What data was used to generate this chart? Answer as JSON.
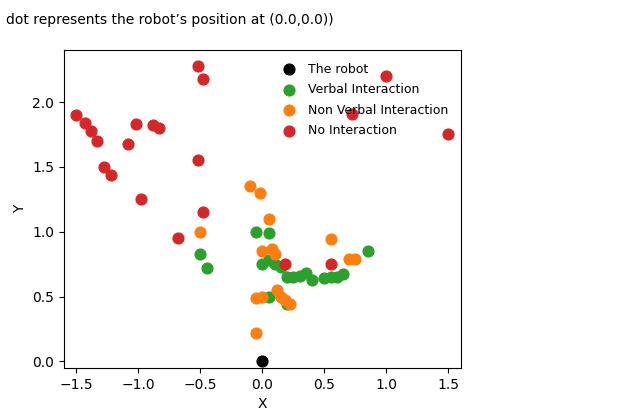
{
  "robot": [
    [
      0.0,
      0.0
    ]
  ],
  "verbal": [
    [
      -0.5,
      0.83
    ],
    [
      -0.45,
      0.72
    ],
    [
      -0.05,
      1.0
    ],
    [
      0.05,
      0.99
    ],
    [
      0.0,
      0.75
    ],
    [
      0.05,
      0.78
    ],
    [
      0.1,
      0.75
    ],
    [
      0.15,
      0.73
    ],
    [
      0.2,
      0.65
    ],
    [
      0.25,
      0.65
    ],
    [
      0.3,
      0.66
    ],
    [
      0.35,
      0.68
    ],
    [
      0.4,
      0.63
    ],
    [
      0.5,
      0.64
    ],
    [
      0.55,
      0.65
    ],
    [
      0.6,
      0.65
    ],
    [
      0.65,
      0.67
    ],
    [
      0.85,
      0.85
    ],
    [
      0.05,
      0.5
    ],
    [
      0.2,
      0.44
    ]
  ],
  "nonverbal": [
    [
      -0.5,
      1.0
    ],
    [
      -0.1,
      1.35
    ],
    [
      -0.02,
      1.3
    ],
    [
      0.05,
      1.1
    ],
    [
      0.0,
      0.85
    ],
    [
      0.08,
      0.87
    ],
    [
      0.1,
      0.83
    ],
    [
      0.0,
      0.5
    ],
    [
      -0.05,
      0.49
    ],
    [
      0.12,
      0.55
    ],
    [
      0.15,
      0.5
    ],
    [
      0.18,
      0.47
    ],
    [
      0.22,
      0.44
    ],
    [
      -0.05,
      0.22
    ],
    [
      0.55,
      0.94
    ],
    [
      0.7,
      0.79
    ],
    [
      0.75,
      0.79
    ]
  ],
  "no_interaction": [
    [
      -1.5,
      1.9
    ],
    [
      -1.43,
      1.84
    ],
    [
      -1.38,
      1.78
    ],
    [
      -1.33,
      1.7
    ],
    [
      -1.28,
      1.5
    ],
    [
      -1.22,
      1.44
    ],
    [
      -1.08,
      1.68
    ],
    [
      -1.02,
      1.83
    ],
    [
      -0.88,
      1.82
    ],
    [
      -0.83,
      1.8
    ],
    [
      -0.52,
      1.55
    ],
    [
      -0.52,
      2.28
    ],
    [
      -0.48,
      2.18
    ],
    [
      -0.48,
      1.15
    ],
    [
      -0.68,
      0.95
    ],
    [
      -0.98,
      1.25
    ],
    [
      0.18,
      0.75
    ],
    [
      0.55,
      0.75
    ],
    [
      1.0,
      2.2
    ],
    [
      0.72,
      1.91
    ],
    [
      1.5,
      1.75
    ]
  ],
  "robot_color": "#000000",
  "verbal_color": "#2ca02c",
  "nonverbal_color": "#ff7f0e",
  "no_interaction_color": "#d62728",
  "xlabel": "X",
  "ylabel": "Y",
  "xlim": [
    -1.6,
    1.6
  ],
  "ylim": [
    -0.05,
    2.4
  ],
  "top_text": "dot represents the robot’s position at (0.0,0.0))",
  "legend_labels": [
    "The robot",
    "Verbal Interaction",
    "Non Verbal Interaction",
    "No Interaction"
  ],
  "marker_size": 60
}
